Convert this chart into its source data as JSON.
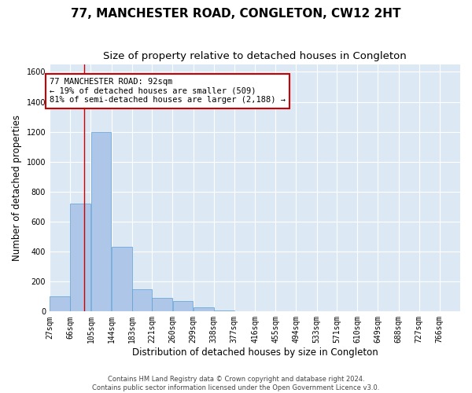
{
  "title": "77, MANCHESTER ROAD, CONGLETON, CW12 2HT",
  "subtitle": "Size of property relative to detached houses in Congleton",
  "xlabel": "Distribution of detached houses by size in Congleton",
  "ylabel": "Number of detached properties",
  "footer_line1": "Contains HM Land Registry data © Crown copyright and database right 2024.",
  "footer_line2": "Contains public sector information licensed under the Open Government Licence v3.0.",
  "bin_edges": [
    27,
    66,
    105,
    144,
    183,
    221,
    260,
    299,
    338,
    377,
    416,
    455,
    494,
    533,
    571,
    610,
    649,
    688,
    727,
    766,
    805
  ],
  "bar_heights": [
    100,
    720,
    1200,
    430,
    150,
    90,
    70,
    30,
    5,
    3,
    2,
    1,
    1,
    1,
    1,
    1,
    0,
    0,
    0,
    0
  ],
  "bar_color": "#aec6e8",
  "bar_edge_color": "#5a9fd4",
  "property_size": 92,
  "property_line_color": "#cc0000",
  "annotation_line1": "77 MANCHESTER ROAD: 92sqm",
  "annotation_line2": "← 19% of detached houses are smaller (509)",
  "annotation_line3": "81% of semi-detached houses are larger (2,188) →",
  "annotation_box_color": "#ffffff",
  "annotation_box_edge_color": "#cc0000",
  "ylim": [
    0,
    1650
  ],
  "yticks": [
    0,
    200,
    400,
    600,
    800,
    1000,
    1200,
    1400,
    1600
  ],
  "background_color": "#dce9f5",
  "grid_color": "#ffffff",
  "title_fontsize": 11,
  "subtitle_fontsize": 9.5,
  "tick_label_fontsize": 7,
  "ylabel_fontsize": 8.5,
  "xlabel_fontsize": 8.5,
  "annotation_fontsize": 7.5
}
